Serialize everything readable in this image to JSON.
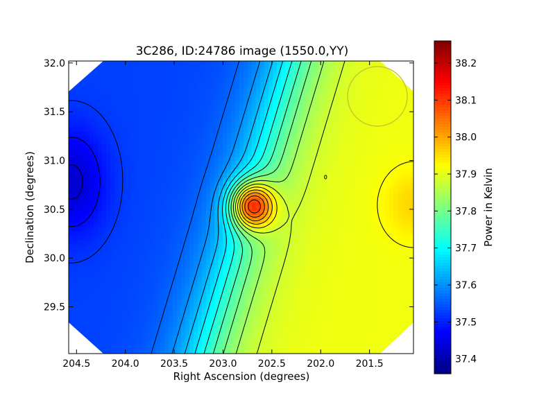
{
  "chart_data": {
    "type": "heatmap",
    "title": "3C286, ID:24786 image (1550.0,YY)",
    "xlabel": "Right Ascension (degrees)",
    "ylabel": "Declination (degrees)",
    "colorbar_label": "Power in Kelvin",
    "xlim": [
      204.58,
      201.05
    ],
    "ylim": [
      29.02,
      32.02
    ],
    "x_ticks": [
      {
        "value": 204.5,
        "label": "204.5"
      },
      {
        "value": 204.0,
        "label": "204.0"
      },
      {
        "value": 203.5,
        "label": "203.5"
      },
      {
        "value": 203.0,
        "label": "203.0"
      },
      {
        "value": 202.5,
        "label": "202.5"
      },
      {
        "value": 202.0,
        "label": "202.0"
      },
      {
        "value": 201.5,
        "label": "201.5"
      }
    ],
    "y_ticks": [
      {
        "value": 29.5,
        "label": "29.5"
      },
      {
        "value": 30.0,
        "label": "30.0"
      },
      {
        "value": 30.5,
        "label": "30.5"
      },
      {
        "value": 31.0,
        "label": "31.0"
      },
      {
        "value": 31.5,
        "label": "31.5"
      },
      {
        "value": 32.0,
        "label": "32.0"
      }
    ],
    "colorbar": {
      "range": [
        37.36,
        38.26
      ],
      "ticks": [
        {
          "value": 37.4,
          "label": "37.4"
        },
        {
          "value": 37.5,
          "label": "37.5"
        },
        {
          "value": 37.6,
          "label": "37.6"
        },
        {
          "value": 37.7,
          "label": "37.7"
        },
        {
          "value": 37.8,
          "label": "37.8"
        },
        {
          "value": 37.9,
          "label": "37.9"
        },
        {
          "value": 38.0,
          "label": "38.0"
        },
        {
          "value": 38.1,
          "label": "38.1"
        },
        {
          "value": 38.2,
          "label": "38.2"
        }
      ]
    },
    "peaks": [
      {
        "ra": 202.71,
        "dec": 30.54,
        "value": 38.26
      },
      {
        "ra": 204.52,
        "dec": 30.78,
        "value": 37.36
      },
      {
        "ra": 201.05,
        "dec": 30.55,
        "value": 37.96
      }
    ],
    "beam": {
      "ra": 201.4,
      "dec": 31.65,
      "radius_deg": 0.3
    },
    "colors": {
      "beam_circle": "#c8c82a",
      "contours": "#000000"
    }
  }
}
